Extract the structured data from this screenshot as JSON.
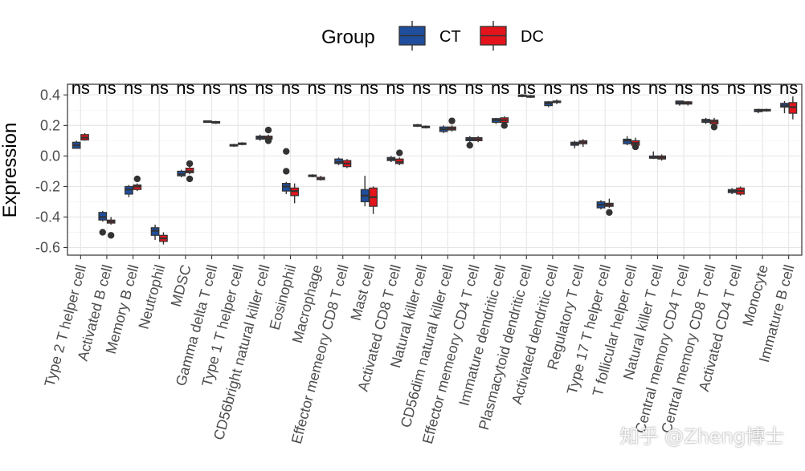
{
  "chart_data": {
    "type": "box",
    "ylabel": "Expression",
    "ylim": [
      -0.65,
      0.47
    ],
    "yticks": [
      -0.6,
      -0.4,
      -0.2,
      0.0,
      0.2,
      0.4
    ],
    "ytick_labels": [
      "-0.6",
      "-0.4",
      "-0.2",
      "0.0",
      "0.2",
      "0.4"
    ],
    "grid": true,
    "legend": {
      "title": "Group",
      "position": "top",
      "entries": [
        {
          "name": "CT",
          "color": "#1F4E9C"
        },
        {
          "name": "DC",
          "color": "#E3141C"
        }
      ]
    },
    "significance_label": "ns",
    "categories": [
      "Type 2 T helper cell",
      "Activated B cell",
      "Memory B cell",
      "Neutrophil",
      "MDSC",
      "Gamma delta T cell",
      "Type 1 T helper cell",
      "CD56bright natural killer cell",
      "Eosinophil",
      "Macrophage",
      "Effector memeory CD8 T cell",
      "Mast cell",
      "Activated CD8 T cell",
      "Natural killer cell",
      "CD56dim natural killer cell",
      "Effector memeory CD4 T cell",
      "Immature dendritic cell",
      "Plasmacytoid dendritic cell",
      "Activated dendritic cell",
      "Regulatory T cell",
      "Type 17 T helper cell",
      "T follicular helper cell",
      "Natural killer T cell",
      "Central memory CD4 T cell",
      "Central memory CD8 T cell",
      "Activated CD4 T cell",
      "Monocyte",
      "Immature  B cell"
    ],
    "series": [
      {
        "name": "CT",
        "boxes": [
          {
            "min": 0.05,
            "q1": 0.05,
            "median": 0.07,
            "q3": 0.09,
            "max": 0.1,
            "outliers": []
          },
          {
            "min": -0.43,
            "q1": -0.42,
            "median": -0.4,
            "q3": -0.37,
            "max": -0.36,
            "outliers": [
              -0.5
            ]
          },
          {
            "min": -0.27,
            "q1": -0.25,
            "median": -0.22,
            "q3": -0.2,
            "max": -0.19,
            "outliers": []
          },
          {
            "min": -0.55,
            "q1": -0.52,
            "median": -0.49,
            "q3": -0.47,
            "max": -0.45,
            "outliers": []
          },
          {
            "min": -0.14,
            "q1": -0.13,
            "median": -0.12,
            "q3": -0.1,
            "max": -0.09,
            "outliers": []
          },
          {
            "min": 0.22,
            "q1": 0.22,
            "median": 0.225,
            "q3": 0.23,
            "max": 0.23,
            "outliers": []
          },
          {
            "min": 0.06,
            "q1": 0.065,
            "median": 0.07,
            "q3": 0.075,
            "max": 0.08,
            "outliers": []
          },
          {
            "min": 0.1,
            "q1": 0.11,
            "median": 0.12,
            "q3": 0.13,
            "max": 0.14,
            "outliers": []
          },
          {
            "min": -0.25,
            "q1": -0.23,
            "median": -0.2,
            "q3": -0.18,
            "max": -0.17,
            "outliers": [
              0.03,
              -0.1
            ]
          },
          {
            "min": -0.14,
            "q1": -0.135,
            "median": -0.13,
            "q3": -0.125,
            "max": -0.12,
            "outliers": []
          },
          {
            "min": -0.06,
            "q1": -0.05,
            "median": -0.04,
            "q3": -0.02,
            "max": -0.01,
            "outliers": []
          },
          {
            "min": -0.33,
            "q1": -0.3,
            "median": -0.26,
            "q3": -0.22,
            "max": -0.13,
            "outliers": []
          },
          {
            "min": -0.04,
            "q1": -0.03,
            "median": -0.02,
            "q3": -0.01,
            "max": 0.0,
            "outliers": []
          },
          {
            "min": 0.19,
            "q1": 0.195,
            "median": 0.2,
            "q3": 0.205,
            "max": 0.21,
            "outliers": []
          },
          {
            "min": 0.15,
            "q1": 0.16,
            "median": 0.175,
            "q3": 0.19,
            "max": 0.2,
            "outliers": []
          },
          {
            "min": 0.09,
            "q1": 0.1,
            "median": 0.11,
            "q3": 0.12,
            "max": 0.13,
            "outliers": [
              0.07
            ]
          },
          {
            "min": 0.21,
            "q1": 0.22,
            "median": 0.235,
            "q3": 0.245,
            "max": 0.25,
            "outliers": []
          },
          {
            "min": 0.385,
            "q1": 0.39,
            "median": 0.395,
            "q3": 0.4,
            "max": 0.405,
            "outliers": []
          },
          {
            "min": 0.32,
            "q1": 0.33,
            "median": 0.345,
            "q3": 0.355,
            "max": 0.36,
            "outliers": []
          },
          {
            "min": 0.05,
            "q1": 0.07,
            "median": 0.08,
            "q3": 0.09,
            "max": 0.1,
            "outliers": []
          },
          {
            "min": -0.35,
            "q1": -0.34,
            "median": -0.32,
            "q3": -0.3,
            "max": -0.29,
            "outliers": []
          },
          {
            "min": 0.07,
            "q1": 0.08,
            "median": 0.1,
            "q3": 0.11,
            "max": 0.13,
            "outliers": []
          },
          {
            "min": -0.02,
            "q1": -0.015,
            "median": -0.01,
            "q3": 0.0,
            "max": 0.03,
            "outliers": []
          },
          {
            "min": 0.33,
            "q1": 0.34,
            "median": 0.35,
            "q3": 0.36,
            "max": 0.36,
            "outliers": []
          },
          {
            "min": 0.21,
            "q1": 0.22,
            "median": 0.23,
            "q3": 0.24,
            "max": 0.25,
            "outliers": []
          },
          {
            "min": -0.25,
            "q1": -0.24,
            "median": -0.23,
            "q3": -0.22,
            "max": -0.21,
            "outliers": []
          },
          {
            "min": 0.28,
            "q1": 0.29,
            "median": 0.3,
            "q3": 0.305,
            "max": 0.31,
            "outliers": []
          },
          {
            "min": 0.28,
            "q1": 0.32,
            "median": 0.33,
            "q3": 0.345,
            "max": 0.36,
            "outliers": []
          }
        ]
      },
      {
        "name": "DC",
        "boxes": [
          {
            "min": 0.1,
            "q1": 0.105,
            "median": 0.12,
            "q3": 0.14,
            "max": 0.15,
            "outliers": []
          },
          {
            "min": -0.45,
            "q1": -0.44,
            "median": -0.43,
            "q3": -0.42,
            "max": -0.4,
            "outliers": [
              -0.52
            ]
          },
          {
            "min": -0.23,
            "q1": -0.22,
            "median": -0.2,
            "q3": -0.19,
            "max": -0.18,
            "outliers": [
              -0.15
            ]
          },
          {
            "min": -0.58,
            "q1": -0.56,
            "median": -0.54,
            "q3": -0.52,
            "max": -0.5,
            "outliers": []
          },
          {
            "min": -0.12,
            "q1": -0.11,
            "median": -0.1,
            "q3": -0.08,
            "max": -0.07,
            "outliers": [
              -0.05,
              -0.15
            ]
          },
          {
            "min": 0.21,
            "q1": 0.215,
            "median": 0.22,
            "q3": 0.225,
            "max": 0.23,
            "outliers": []
          },
          {
            "min": 0.07,
            "q1": 0.075,
            "median": 0.08,
            "q3": 0.085,
            "max": 0.09,
            "outliers": []
          },
          {
            "min": 0.1,
            "q1": 0.11,
            "median": 0.12,
            "q3": 0.13,
            "max": 0.14,
            "outliers": [
              0.17,
              0.1
            ]
          },
          {
            "min": -0.31,
            "q1": -0.26,
            "median": -0.23,
            "q3": -0.21,
            "max": -0.18,
            "outliers": []
          },
          {
            "min": -0.16,
            "q1": -0.155,
            "median": -0.15,
            "q3": -0.14,
            "max": -0.13,
            "outliers": []
          },
          {
            "min": -0.08,
            "q1": -0.07,
            "median": -0.05,
            "q3": -0.03,
            "max": -0.02,
            "outliers": []
          },
          {
            "min": -0.38,
            "q1": -0.33,
            "median": -0.27,
            "q3": -0.21,
            "max": -0.2,
            "outliers": []
          },
          {
            "min": -0.06,
            "q1": -0.05,
            "median": -0.04,
            "q3": -0.02,
            "max": -0.01,
            "outliers": [
              0.02
            ]
          },
          {
            "min": 0.18,
            "q1": 0.185,
            "median": 0.19,
            "q3": 0.195,
            "max": 0.2,
            "outliers": []
          },
          {
            "min": 0.16,
            "q1": 0.17,
            "median": 0.18,
            "q3": 0.19,
            "max": 0.2,
            "outliers": [
              0.23
            ]
          },
          {
            "min": 0.09,
            "q1": 0.1,
            "median": 0.11,
            "q3": 0.12,
            "max": 0.13,
            "outliers": []
          },
          {
            "min": 0.21,
            "q1": 0.22,
            "median": 0.235,
            "q3": 0.25,
            "max": 0.26,
            "outliers": [
              0.2
            ]
          },
          {
            "min": 0.38,
            "q1": 0.385,
            "median": 0.39,
            "q3": 0.395,
            "max": 0.4,
            "outliers": []
          },
          {
            "min": 0.34,
            "q1": 0.35,
            "median": 0.355,
            "q3": 0.36,
            "max": 0.37,
            "outliers": []
          },
          {
            "min": 0.06,
            "q1": 0.08,
            "median": 0.09,
            "q3": 0.1,
            "max": 0.11,
            "outliers": []
          },
          {
            "min": -0.34,
            "q1": -0.33,
            "median": -0.32,
            "q3": -0.31,
            "max": -0.28,
            "outliers": [
              -0.37
            ]
          },
          {
            "min": 0.05,
            "q1": 0.07,
            "median": 0.085,
            "q3": 0.1,
            "max": 0.12,
            "outliers": [
              0.06
            ]
          },
          {
            "min": -0.03,
            "q1": -0.02,
            "median": -0.01,
            "q3": 0.0,
            "max": 0.01,
            "outliers": []
          },
          {
            "min": 0.33,
            "q1": 0.34,
            "median": 0.345,
            "q3": 0.355,
            "max": 0.36,
            "outliers": []
          },
          {
            "min": 0.2,
            "q1": 0.21,
            "median": 0.225,
            "q3": 0.235,
            "max": 0.25,
            "outliers": [
              0.19
            ]
          },
          {
            "min": -0.26,
            "q1": -0.25,
            "median": -0.23,
            "q3": -0.21,
            "max": -0.2,
            "outliers": []
          },
          {
            "min": 0.29,
            "q1": 0.295,
            "median": 0.3,
            "q3": 0.305,
            "max": 0.31,
            "outliers": []
          },
          {
            "min": 0.24,
            "q1": 0.28,
            "median": 0.32,
            "q3": 0.35,
            "max": 0.39,
            "outliers": []
          }
        ]
      }
    ]
  },
  "watermark": "知乎 @Zheng博士"
}
